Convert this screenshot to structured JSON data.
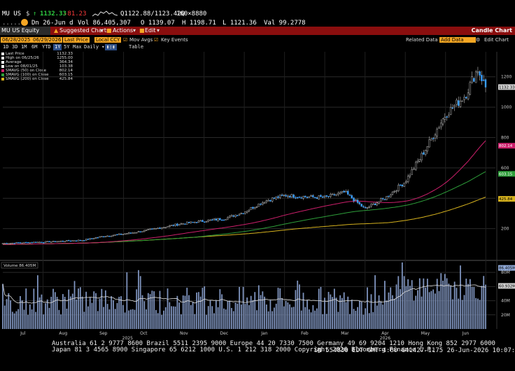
{
  "quote": {
    "symbol": "MU US",
    "currency": "$",
    "last": "1132.33",
    "change": "-81.23",
    "bid_ask": "Q1122.88/1123.42Q",
    "size": "160×8880",
    "date_label": "Dn 26-Jun d",
    "volume_label": "Vol 86,405,307",
    "open_label": "O 1139.07",
    "high_label": "H 1198.71",
    "low_label": "L 1121.36",
    "val_label": "Val 99.2778"
  },
  "redbar": {
    "security": "MU US Equity",
    "suggested": "Suggested Charts",
    "actions": "Actions",
    "edit": "Edit",
    "chart_type": "Candle Chart"
  },
  "toolbar": {
    "start_date": "06/28/2025",
    "end_date": "06/29/2026",
    "price_field": "Last Price",
    "currency": "Local CCY",
    "mov_avgs": "Mov Avgs",
    "key_events": "Key Events",
    "related": "Related Data",
    "add_data": "Add Data",
    "edit_chart": "Edit Chart",
    "ranges": [
      "1D",
      "3D",
      "1M",
      "6M",
      "YTD",
      "1Y",
      "5Y",
      "Max"
    ],
    "selected_range": "1Y",
    "frequency": "Daily",
    "table": "Table"
  },
  "legend": [
    {
      "label": "Last Price",
      "value": "1132.33",
      "color": "#ffffff"
    },
    {
      "label": "High on 06/25/26",
      "value": "1255.00",
      "color": "#ffffff"
    },
    {
      "label": "Average",
      "value": "364.34",
      "color": "#ffffff"
    },
    {
      "label": "Low on 08/01/25",
      "value": "103.38",
      "color": "#ffffff"
    },
    {
      "label": "SMAVG (50)  on Close",
      "value": "802.14",
      "color": "#cc1f6b"
    },
    {
      "label": "SMAVG (100)  on Close",
      "value": "603.15",
      "color": "#2e9e3a"
    },
    {
      "label": "SMAVG (200)  on Close",
      "value": "425.84",
      "color": "#d6b21e"
    }
  ],
  "price_axis": {
    "ticks": [
      "1200",
      "1000",
      "800",
      "600",
      "400",
      "200"
    ],
    "tags": [
      {
        "text": "1132.33",
        "bg": "#cfcfcf",
        "fg": "#000000"
      },
      {
        "text": "802.14",
        "bg": "#cc1f6b",
        "fg": "#ffffff"
      },
      {
        "text": "603.15",
        "bg": "#2e9e3a",
        "fg": "#ffffff"
      },
      {
        "text": "425.84",
        "bg": "#d6b21e",
        "fg": "#000000"
      }
    ]
  },
  "volume": {
    "label": "Volume 86.405M",
    "ticks": [
      "80M",
      "60M",
      "40M",
      "20M"
    ],
    "tags": [
      {
        "text": "86.405M",
        "bg": "#8fa8d6",
        "fg": "#000000"
      },
      {
        "text": "60.932M",
        "bg": "#cfcfcf",
        "fg": "#000000"
      }
    ]
  },
  "x_axis": {
    "months": [
      "Jul",
      "Aug",
      "Sep",
      "Oct",
      "Nov",
      "Dec",
      "Jan",
      "Feb",
      "Mar",
      "Apr",
      "May",
      "Jun"
    ],
    "years": [
      "2025",
      "2026"
    ]
  },
  "footer": {
    "line1": "Australia 61 2 9777 8600 Brazil 5511 2395 9000 Europe 44 20 7330 7500 Germany 49 69 9204 1210 Hong Kong 852 2977 6000",
    "line2": "Japan 81 3 4565 8900        Singapore 65 6212 1000      U.S. 1 212 318 2000          Copyright 2026 Bloomberg Finance L.P.",
    "line3": "SN 554830 EDT  GMT-4:00 G41427-1175 26-Jun-2026 10:07:40"
  },
  "chart_data": {
    "type": "candlestick",
    "title": "",
    "start": "06/28/2025",
    "end": "06/29/2026",
    "ylim": [
      0,
      1300
    ],
    "volume_ylim_millions": [
      0,
      95
    ],
    "close_anchors_by_month_fraction": [
      [
        0,
        103
      ],
      [
        0.5,
        108
      ],
      [
        1,
        112
      ],
      [
        1.5,
        118
      ],
      [
        2,
        125
      ],
      [
        2.5,
        150
      ],
      [
        3,
        165
      ],
      [
        3.5,
        185
      ],
      [
        4,
        210
      ],
      [
        4.5,
        235
      ],
      [
        5,
        250
      ],
      [
        5.5,
        265
      ],
      [
        6,
        310
      ],
      [
        6.5,
        380
      ],
      [
        7,
        420
      ],
      [
        7.5,
        410
      ],
      [
        8,
        405
      ],
      [
        8.5,
        440
      ],
      [
        9,
        330
      ],
      [
        9.5,
        400
      ],
      [
        10,
        510
      ],
      [
        10.5,
        720
      ],
      [
        11,
        950
      ],
      [
        11.5,
        1080
      ],
      [
        11.8,
        1255
      ],
      [
        12,
        1132
      ]
    ],
    "sma": {
      "SMAVG (50)": 802.14,
      "SMAVG (100)": 603.15,
      "SMAVG (200)": 425.84
    },
    "last": 1132.33,
    "high": 1255.0,
    "low": 103.38,
    "average": 364.34,
    "volume_last_millions": 86.405,
    "volume_avg_millions": 60.932
  }
}
